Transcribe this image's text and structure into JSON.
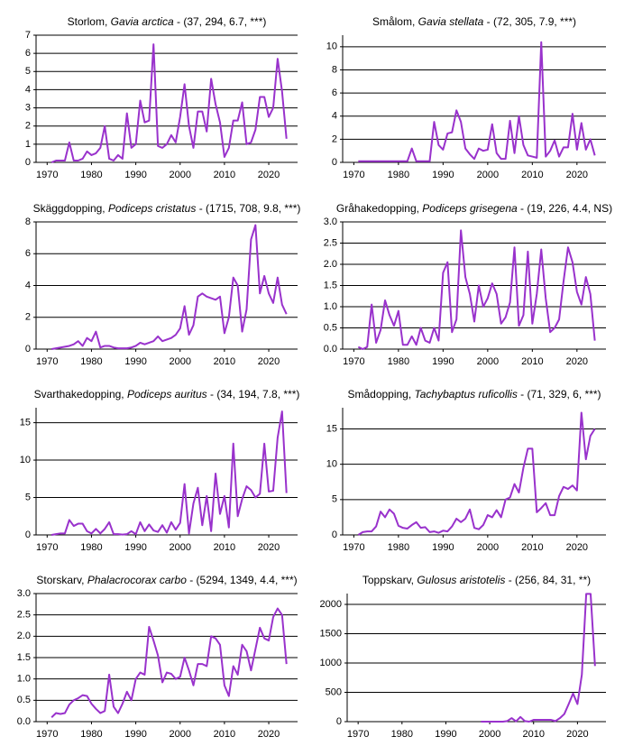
{
  "chart_data": [
    {
      "type": "line",
      "title_parts": [
        "Storlom, ",
        "Gavia arctica",
        " - (37, 294, 6.7, ***)"
      ],
      "color": "#9932cc",
      "x": [
        1971,
        1972,
        1973,
        1974,
        1975,
        1976,
        1977,
        1978,
        1979,
        1980,
        1981,
        1982,
        1983,
        1984,
        1985,
        1986,
        1987,
        1988,
        1989,
        1990,
        1991,
        1992,
        1993,
        1994,
        1995,
        1996,
        1997,
        1998,
        1999,
        2000,
        2001,
        2002,
        2003,
        2004,
        2005,
        2006,
        2007,
        2008,
        2009,
        2010,
        2011,
        2012,
        2013,
        2014,
        2015,
        2016,
        2017,
        2018,
        2019,
        2020,
        2021,
        2022,
        2023,
        2024
      ],
      "values": [
        0,
        0.1,
        0.1,
        0.1,
        1.1,
        0.1,
        0.1,
        0.2,
        0.6,
        0.4,
        0.5,
        0.8,
        2.0,
        0.2,
        0.1,
        0.4,
        0.2,
        2.7,
        0.8,
        1.0,
        3.4,
        2.2,
        2.3,
        6.5,
        0.9,
        0.8,
        1.0,
        1.5,
        1.1,
        2.5,
        4.3,
        2.0,
        0.8,
        2.8,
        2.8,
        1.7,
        4.6,
        3.2,
        2.2,
        0.3,
        0.8,
        2.3,
        2.3,
        3.3,
        1.0,
        1.1,
        1.8,
        3.6,
        3.6,
        2.5,
        3.0,
        5.7,
        3.9,
        1.3
      ],
      "xlim": [
        1967.5,
        2026.5
      ],
      "xticks": [
        1970,
        1980,
        1990,
        2000,
        2010,
        2020
      ],
      "ylim": [
        0,
        7
      ],
      "yticks": [
        0,
        1,
        2,
        3,
        4,
        5,
        6,
        7
      ],
      "grid": true
    },
    {
      "type": "line",
      "title_parts": [
        "Smålom, ",
        "Gavia stellata",
        " - (72, 305, 7.9, ***)"
      ],
      "color": "#9932cc",
      "x": [
        1971,
        1972,
        1973,
        1974,
        1975,
        1976,
        1977,
        1978,
        1979,
        1980,
        1981,
        1982,
        1983,
        1984,
        1985,
        1986,
        1987,
        1988,
        1989,
        1990,
        1991,
        1992,
        1993,
        1994,
        1995,
        1996,
        1997,
        1998,
        1999,
        2000,
        2001,
        2002,
        2003,
        2004,
        2005,
        2006,
        2007,
        2008,
        2009,
        2010,
        2011,
        2012,
        2013,
        2014,
        2015,
        2016,
        2017,
        2018,
        2019,
        2020,
        2021,
        2022,
        2023,
        2024
      ],
      "values": [
        0.1,
        0.1,
        0.1,
        0.1,
        0.1,
        0.1,
        0.1,
        0.1,
        0.1,
        0.1,
        0.1,
        0.1,
        1.2,
        0.1,
        0.1,
        0.1,
        0.1,
        3.5,
        1.5,
        1.1,
        2.5,
        2.6,
        4.5,
        3.5,
        1.2,
        0.7,
        0.3,
        1.2,
        1.0,
        1.1,
        3.3,
        0.8,
        0.3,
        0.3,
        3.6,
        0.8,
        4.0,
        1.5,
        0.6,
        0.5,
        0.4,
        10.4,
        0.5,
        1.0,
        1.9,
        0.5,
        1.3,
        1.3,
        4.2,
        1.1,
        3.4,
        1.1,
        2.0,
        0.6
      ],
      "xlim": [
        1967.5,
        2026.5
      ],
      "xticks": [
        1970,
        1980,
        1990,
        2000,
        2010,
        2020
      ],
      "ylim": [
        0,
        11
      ],
      "yticks": [
        0,
        2,
        4,
        6,
        8,
        10
      ],
      "grid": true
    },
    {
      "type": "line",
      "title_parts": [
        "Skäggdopping, ",
        "Podiceps cristatus",
        " - (1715, 708, 9.8, ***)"
      ],
      "color": "#9932cc",
      "x": [
        1971,
        1972,
        1973,
        1974,
        1975,
        1976,
        1977,
        1978,
        1979,
        1980,
        1981,
        1982,
        1983,
        1984,
        1985,
        1986,
        1987,
        1988,
        1989,
        1990,
        1991,
        1992,
        1993,
        1994,
        1995,
        1996,
        1997,
        1998,
        1999,
        2000,
        2001,
        2002,
        2003,
        2004,
        2005,
        2006,
        2007,
        2008,
        2009,
        2010,
        2011,
        2012,
        2013,
        2014,
        2015,
        2016,
        2017,
        2018,
        2019,
        2020,
        2021,
        2022,
        2023,
        2024
      ],
      "values": [
        0,
        0.05,
        0.1,
        0.15,
        0.2,
        0.3,
        0.5,
        0.2,
        0.7,
        0.5,
        1.1,
        0.1,
        0.2,
        0.2,
        0.1,
        0.05,
        0.05,
        0.05,
        0.1,
        0.2,
        0.4,
        0.3,
        0.4,
        0.5,
        0.8,
        0.5,
        0.6,
        0.7,
        0.9,
        1.3,
        2.7,
        0.9,
        1.5,
        3.3,
        3.5,
        3.3,
        3.2,
        3.1,
        3.3,
        1.0,
        2.0,
        4.5,
        4.0,
        1.1,
        2.5,
        6.9,
        7.8,
        3.5,
        4.6,
        3.5,
        2.9,
        4.5,
        2.8,
        2.2
      ],
      "xlim": [
        1967.5,
        2026.5
      ],
      "xticks": [
        1970,
        1980,
        1990,
        2000,
        2010,
        2020
      ],
      "ylim": [
        0,
        8
      ],
      "yticks": [
        0,
        2,
        4,
        6,
        8
      ],
      "grid": true
    },
    {
      "type": "line",
      "title_parts": [
        "Gråhakedopping, ",
        "Podiceps grisegena",
        " - (19, 226, 4.4, NS)"
      ],
      "color": "#9932cc",
      "x": [
        1971,
        1972,
        1973,
        1974,
        1975,
        1976,
        1977,
        1978,
        1979,
        1980,
        1981,
        1982,
        1983,
        1984,
        1985,
        1986,
        1987,
        1988,
        1989,
        1990,
        1991,
        1992,
        1993,
        1994,
        1995,
        1996,
        1997,
        1998,
        1999,
        2000,
        2001,
        2002,
        2003,
        2004,
        2005,
        2006,
        2007,
        2008,
        2009,
        2010,
        2011,
        2012,
        2013,
        2014,
        2015,
        2016,
        2017,
        2018,
        2019,
        2020,
        2021,
        2022,
        2023,
        2024
      ],
      "values": [
        0.05,
        0.0,
        0.05,
        1.05,
        0.15,
        0.45,
        1.15,
        0.8,
        0.55,
        0.9,
        0.1,
        0.1,
        0.3,
        0.1,
        0.5,
        0.2,
        0.15,
        0.5,
        0.2,
        1.8,
        2.05,
        0.4,
        0.7,
        2.8,
        1.7,
        1.3,
        0.65,
        1.5,
        1.0,
        1.2,
        1.55,
        1.3,
        0.6,
        0.75,
        1.1,
        2.4,
        0.55,
        0.8,
        2.3,
        0.6,
        1.3,
        2.35,
        1.2,
        0.4,
        0.5,
        0.7,
        1.6,
        2.4,
        2.05,
        1.35,
        1.05,
        1.7,
        1.3,
        0.2
      ],
      "xlim": [
        1967.5,
        2026.5
      ],
      "xticks": [
        1970,
        1980,
        1990,
        2000,
        2010,
        2020
      ],
      "ylim": [
        0,
        3
      ],
      "yticks": [
        {
          "value": 0,
          "label": "0.0"
        },
        {
          "value": 0.5,
          "label": "0.5"
        },
        {
          "value": 1,
          "label": "1.0"
        },
        {
          "value": 1.5,
          "label": "1.5"
        },
        {
          "value": 2,
          "label": "2.0"
        },
        {
          "value": 2.5,
          "label": "2.5"
        },
        {
          "value": 3,
          "label": "3.0"
        }
      ],
      "grid": true
    },
    {
      "type": "line",
      "title_parts": [
        "Svarthakedopping, ",
        "Podiceps auritus",
        " - (34, 194, 7.8, ***)"
      ],
      "color": "#9932cc",
      "x": [
        1971,
        1972,
        1973,
        1974,
        1975,
        1976,
        1977,
        1978,
        1979,
        1980,
        1981,
        1982,
        1983,
        1984,
        1985,
        1986,
        1987,
        1988,
        1989,
        1990,
        1991,
        1992,
        1993,
        1994,
        1995,
        1996,
        1997,
        1998,
        1999,
        2000,
        2001,
        2002,
        2003,
        2004,
        2005,
        2006,
        2007,
        2008,
        2009,
        2010,
        2011,
        2012,
        2013,
        2014,
        2015,
        2016,
        2017,
        2018,
        2019,
        2020,
        2021,
        2022,
        2023,
        2024
      ],
      "values": [
        0,
        0.1,
        0.2,
        0.2,
        2.0,
        1.2,
        1.5,
        1.5,
        0.5,
        0.2,
        0.8,
        0.2,
        0.8,
        1.7,
        0.1,
        0.1,
        0.05,
        0.1,
        0.5,
        0.1,
        1.7,
        0.5,
        1.4,
        0.6,
        0.4,
        1.3,
        0.3,
        1.7,
        0.7,
        1.6,
        6.8,
        0.2,
        4.2,
        6.3,
        1.3,
        5.2,
        0.5,
        8.2,
        2.8,
        5.2,
        1.0,
        12.2,
        2.5,
        4.8,
        6.5,
        6.0,
        5.0,
        5.5,
        12.2,
        5.8,
        5.9,
        13.0,
        16.5,
        5.6
      ],
      "xlim": [
        1967.5,
        2026.5
      ],
      "xticks": [
        1970,
        1980,
        1990,
        2000,
        2010,
        2020
      ],
      "ylim": [
        0,
        17
      ],
      "yticks": [
        0,
        5,
        10,
        15
      ],
      "grid": true
    },
    {
      "type": "line",
      "title_parts": [
        "Smådopping, ",
        "Tachybaptus ruficollis",
        " - (71, 329, 6, ***)"
      ],
      "color": "#9932cc",
      "x": [
        1971,
        1972,
        1973,
        1974,
        1975,
        1976,
        1977,
        1978,
        1979,
        1980,
        1981,
        1982,
        1983,
        1984,
        1985,
        1986,
        1987,
        1988,
        1989,
        1990,
        1991,
        1992,
        1993,
        1994,
        1995,
        1996,
        1997,
        1998,
        1999,
        2000,
        2001,
        2002,
        2003,
        2004,
        2005,
        2006,
        2007,
        2008,
        2009,
        2010,
        2011,
        2012,
        2013,
        2014,
        2015,
        2016,
        2017,
        2018,
        2019,
        2020,
        2021,
        2022,
        2023,
        2024
      ],
      "values": [
        0,
        0.4,
        0.5,
        0.5,
        1.2,
        3.3,
        2.5,
        3.6,
        3.0,
        1.3,
        1.0,
        0.9,
        1.4,
        1.8,
        1.0,
        1.1,
        0.4,
        0.5,
        0.3,
        0.6,
        0.5,
        1.2,
        2.3,
        1.8,
        2.3,
        3.6,
        1.0,
        0.8,
        1.4,
        2.8,
        2.5,
        3.5,
        2.5,
        5.0,
        5.3,
        7.2,
        6.0,
        9.5,
        12.2,
        12.2,
        3.2,
        3.8,
        4.5,
        2.8,
        2.8,
        5.5,
        6.8,
        6.5,
        7.0,
        6.3,
        17.3,
        10.7,
        14.0,
        15.0
      ],
      "xlim": [
        1967.5,
        2026.5
      ],
      "xticks": [
        1970,
        1980,
        1990,
        2000,
        2010,
        2020
      ],
      "ylim": [
        0,
        18
      ],
      "yticks": [
        0,
        5,
        10,
        15
      ],
      "grid": true
    },
    {
      "type": "line",
      "title_parts": [
        "Storskarv, ",
        "Phalacrocorax carbo",
        " - (5294, 1349, 4.4, ***)"
      ],
      "color": "#9932cc",
      "x": [
        1971,
        1972,
        1973,
        1974,
        1975,
        1976,
        1977,
        1978,
        1979,
        1980,
        1981,
        1982,
        1983,
        1984,
        1985,
        1986,
        1987,
        1988,
        1989,
        1990,
        1991,
        1992,
        1993,
        1994,
        1995,
        1996,
        1997,
        1998,
        1999,
        2000,
        2001,
        2002,
        2003,
        2004,
        2005,
        2006,
        2007,
        2008,
        2009,
        2010,
        2011,
        2012,
        2013,
        2014,
        2015,
        2016,
        2017,
        2018,
        2019,
        2020,
        2021,
        2022,
        2023,
        2024
      ],
      "values": [
        0.1,
        0.2,
        0.18,
        0.2,
        0.4,
        0.5,
        0.55,
        0.62,
        0.6,
        0.42,
        0.3,
        0.2,
        0.25,
        1.1,
        0.35,
        0.2,
        0.42,
        0.7,
        0.5,
        1.0,
        1.15,
        1.1,
        2.22,
        1.9,
        1.55,
        0.92,
        1.15,
        1.12,
        1.0,
        1.05,
        1.5,
        1.2,
        0.85,
        1.35,
        1.35,
        1.3,
        2.0,
        1.95,
        1.8,
        0.85,
        0.6,
        1.3,
        1.1,
        1.8,
        1.65,
        1.2,
        1.7,
        2.2,
        1.95,
        1.9,
        2.45,
        2.65,
        2.5,
        1.35
      ],
      "xlim": [
        1967.5,
        2026.5
      ],
      "xticks": [
        1970,
        1980,
        1990,
        2000,
        2010,
        2020
      ],
      "ylim": [
        0,
        3
      ],
      "yticks": [
        {
          "value": 0,
          "label": "0.0"
        },
        {
          "value": 0.5,
          "label": "0.5"
        },
        {
          "value": 1,
          "label": "1.0"
        },
        {
          "value": 1.5,
          "label": "1.5"
        },
        {
          "value": 2,
          "label": "2.0"
        },
        {
          "value": 2.5,
          "label": "2.5"
        },
        {
          "value": 3,
          "label": "3.0"
        }
      ],
      "grid": true
    },
    {
      "type": "line",
      "title_parts": [
        "Toppskarv, ",
        "Gulosus aristotelis",
        " - (256, 84, 31, **)"
      ],
      "color": "#9932cc",
      "x": [
        1971,
        1972,
        1973,
        1974,
        1975,
        1976,
        1977,
        1978,
        1979,
        1980,
        1981,
        1982,
        1983,
        1984,
        1985,
        1986,
        1987,
        1988,
        1989,
        1990,
        1991,
        1992,
        1993,
        1994,
        1995,
        1996,
        1997,
        1998,
        1999,
        2000,
        2001,
        2002,
        2003,
        2004,
        2005,
        2006,
        2007,
        2008,
        2009,
        2010,
        2011,
        2012,
        2013,
        2014,
        2015,
        2016,
        2017,
        2018,
        2019,
        2020,
        2021,
        2022,
        2023,
        2024
      ],
      "values": [
        null,
        null,
        null,
        null,
        null,
        null,
        null,
        null,
        null,
        null,
        null,
        null,
        null,
        null,
        null,
        null,
        null,
        null,
        null,
        null,
        null,
        null,
        null,
        null,
        null,
        null,
        null,
        0,
        0,
        0,
        0,
        0,
        0,
        10,
        60,
        5,
        80,
        10,
        0,
        30,
        30,
        30,
        30,
        30,
        10,
        60,
        130,
        300,
        480,
        300,
        800,
        2180,
        2180,
        950
      ],
      "xlim": [
        1967.5,
        2026.5
      ],
      "xticks": [
        1970,
        1980,
        1990,
        2000,
        2010,
        2020
      ],
      "ylim": [
        0,
        2185
      ],
      "yticks": [
        0,
        500,
        1000,
        1500,
        2000
      ],
      "grid": true
    }
  ]
}
